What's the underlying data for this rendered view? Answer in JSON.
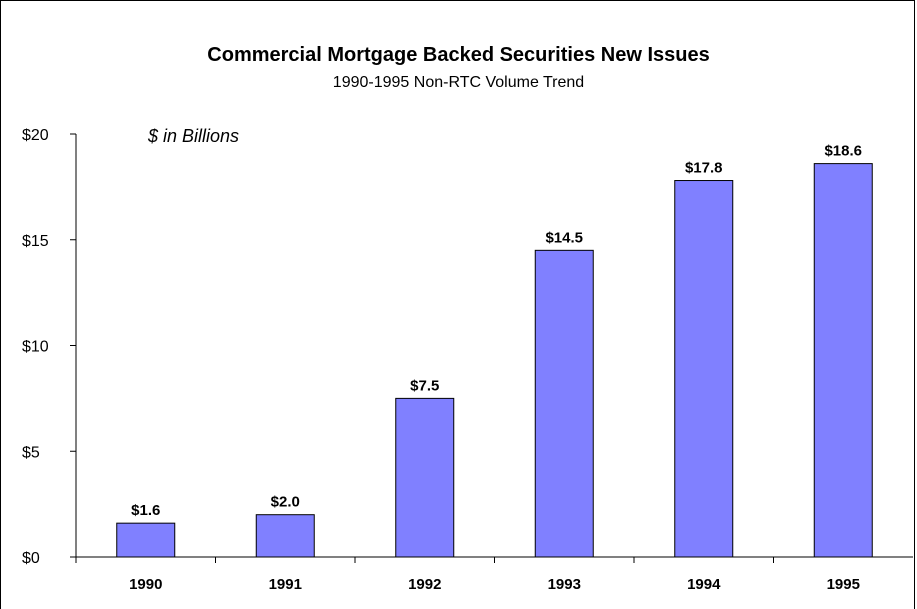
{
  "chart_data": {
    "type": "bar",
    "title": "Commercial Mortgage Backed Securities New Issues",
    "subtitle": "1990-1995 Non-RTC Volume Trend",
    "annotation": "$ in Billions",
    "categories": [
      "1990",
      "1991",
      "1992",
      "1993",
      "1994",
      "1995"
    ],
    "values": [
      1.6,
      2.0,
      7.5,
      14.5,
      17.8,
      18.6
    ],
    "data_labels": [
      "$1.6",
      "$2.0",
      "$7.5",
      "$14.5",
      "$17.8",
      "$18.6"
    ],
    "ylim": [
      0,
      20
    ],
    "yticks": [
      0,
      5,
      10,
      15,
      20
    ],
    "ytick_labels": [
      "$0",
      "$5",
      "$10",
      "$15",
      "$20"
    ],
    "xlabel": "",
    "ylabel": "",
    "grid": false,
    "bar_color": "#8080ff",
    "bar_edge_color": "#000000"
  }
}
